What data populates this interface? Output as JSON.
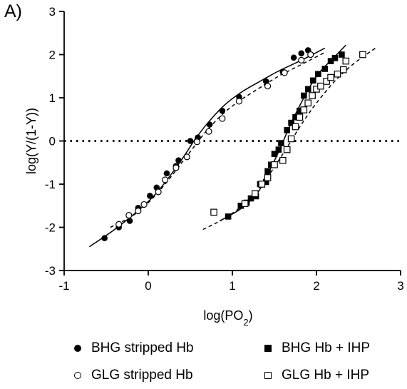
{
  "panel_label": "A)",
  "chart_data": {
    "type": "scatter",
    "xlabel": "log(PO",
    "xlabel_sub": "2",
    "xlabel_end": ")",
    "ylabel": "log(Y/(1-Y))",
    "xlim": [
      -1,
      3
    ],
    "ylim": [
      -3,
      3
    ],
    "x_ticks": [
      "-1",
      "0",
      "1",
      "2",
      "3"
    ],
    "y_ticks": [
      "-3",
      "-2",
      "-1",
      "0",
      "1",
      "2",
      "3"
    ],
    "reference_line": {
      "y": 0,
      "style": "dotted"
    },
    "series": [
      {
        "name": "BHG stripped Hb",
        "marker": "filled-circle",
        "fit_style": "solid",
        "points": [
          [
            -0.52,
            -2.25
          ],
          [
            -0.35,
            -2.0
          ],
          [
            -0.22,
            -1.85
          ],
          [
            -0.12,
            -1.55
          ],
          [
            0.02,
            -1.27
          ],
          [
            0.1,
            -1.08
          ],
          [
            0.22,
            -0.75
          ],
          [
            0.33,
            -0.58
          ],
          [
            0.36,
            -0.45
          ],
          [
            0.5,
            0.0
          ],
          [
            0.59,
            0.08
          ],
          [
            0.73,
            0.38
          ],
          [
            0.88,
            0.7
          ],
          [
            1.08,
            1.02
          ],
          [
            1.4,
            1.38
          ],
          [
            1.6,
            1.6
          ],
          [
            1.73,
            1.93
          ],
          [
            1.82,
            2.03
          ],
          [
            1.9,
            2.1
          ]
        ],
        "fit": [
          [
            -0.7,
            -2.45
          ],
          [
            -0.4,
            -2.05
          ],
          [
            -0.1,
            -1.58
          ],
          [
            0.1,
            -1.2
          ],
          [
            0.3,
            -0.7
          ],
          [
            0.45,
            -0.28
          ],
          [
            0.55,
            0.02
          ],
          [
            0.7,
            0.4
          ],
          [
            0.9,
            0.82
          ],
          [
            1.1,
            1.12
          ],
          [
            1.3,
            1.35
          ],
          [
            1.55,
            1.62
          ],
          [
            1.8,
            1.85
          ],
          [
            2.1,
            2.15
          ]
        ]
      },
      {
        "name": "GLG stripped Hb",
        "marker": "open-circle",
        "fit_style": "dashed",
        "points": [
          [
            -0.35,
            -1.93
          ],
          [
            -0.23,
            -1.72
          ],
          [
            -0.12,
            -1.62
          ],
          [
            -0.05,
            -1.47
          ],
          [
            0.12,
            -1.18
          ],
          [
            0.2,
            -0.9
          ],
          [
            0.33,
            -0.62
          ],
          [
            0.46,
            -0.37
          ],
          [
            0.58,
            -0.02
          ],
          [
            0.72,
            0.22
          ],
          [
            0.88,
            0.52
          ],
          [
            1.08,
            0.92
          ],
          [
            1.42,
            1.27
          ],
          [
            1.62,
            1.58
          ],
          [
            1.82,
            1.87
          ],
          [
            1.93,
            2.0
          ]
        ],
        "fit": [
          [
            -0.45,
            -2.0
          ],
          [
            -0.2,
            -1.75
          ],
          [
            0.0,
            -1.43
          ],
          [
            0.2,
            -1.0
          ],
          [
            0.4,
            -0.5
          ],
          [
            0.55,
            -0.12
          ],
          [
            0.7,
            0.25
          ],
          [
            0.9,
            0.65
          ],
          [
            1.1,
            0.95
          ],
          [
            1.3,
            1.2
          ],
          [
            1.55,
            1.5
          ],
          [
            1.8,
            1.75
          ],
          [
            2.1,
            2.05
          ]
        ]
      },
      {
        "name": "BHG Hb + IHP",
        "marker": "filled-square",
        "fit_style": "solid",
        "points": [
          [
            0.95,
            -1.75
          ],
          [
            1.1,
            -1.5
          ],
          [
            1.17,
            -1.43
          ],
          [
            1.22,
            -1.33
          ],
          [
            1.28,
            -1.28
          ],
          [
            1.33,
            -1.0
          ],
          [
            1.4,
            -0.95
          ],
          [
            1.42,
            -0.7
          ],
          [
            1.46,
            -0.55
          ],
          [
            1.5,
            -0.3
          ],
          [
            1.55,
            -0.2
          ],
          [
            1.58,
            -0.05
          ],
          [
            1.65,
            0.25
          ],
          [
            1.7,
            0.42
          ],
          [
            1.75,
            0.55
          ],
          [
            1.8,
            0.7
          ],
          [
            1.85,
            1.05
          ],
          [
            1.9,
            1.2
          ],
          [
            1.96,
            1.4
          ],
          [
            2.02,
            1.55
          ],
          [
            2.1,
            1.67
          ],
          [
            2.17,
            1.85
          ],
          [
            2.22,
            1.92
          ],
          [
            2.3,
            2.0
          ]
        ],
        "fit": [
          [
            0.85,
            -1.85
          ],
          [
            1.1,
            -1.57
          ],
          [
            1.3,
            -1.2
          ],
          [
            1.45,
            -0.65
          ],
          [
            1.55,
            -0.25
          ],
          [
            1.65,
            0.2
          ],
          [
            1.75,
            0.62
          ],
          [
            1.85,
            1.0
          ],
          [
            1.95,
            1.35
          ],
          [
            2.05,
            1.62
          ],
          [
            2.2,
            1.92
          ],
          [
            2.35,
            2.22
          ]
        ]
      },
      {
        "name": "GLG Hb + IHP",
        "marker": "open-square",
        "fit_style": "dashed",
        "points": [
          [
            0.78,
            -1.65
          ],
          [
            1.15,
            -1.45
          ],
          [
            1.27,
            -1.22
          ],
          [
            1.35,
            -1.0
          ],
          [
            1.42,
            -0.85
          ],
          [
            1.5,
            -0.55
          ],
          [
            1.6,
            -0.45
          ],
          [
            1.65,
            -0.2
          ],
          [
            1.7,
            0.05
          ],
          [
            1.75,
            0.33
          ],
          [
            1.8,
            0.55
          ],
          [
            1.85,
            0.72
          ],
          [
            1.9,
            0.88
          ],
          [
            1.95,
            1.05
          ],
          [
            2.0,
            1.2
          ],
          [
            2.05,
            1.27
          ],
          [
            2.12,
            1.38
          ],
          [
            2.17,
            1.47
          ],
          [
            2.25,
            1.55
          ],
          [
            2.32,
            1.65
          ],
          [
            2.35,
            1.85
          ],
          [
            2.55,
            2.0
          ]
        ],
        "fit": [
          [
            0.65,
            -2.05
          ],
          [
            0.9,
            -1.8
          ],
          [
            1.15,
            -1.45
          ],
          [
            1.35,
            -1.02
          ],
          [
            1.5,
            -0.6
          ],
          [
            1.65,
            -0.15
          ],
          [
            1.8,
            0.32
          ],
          [
            1.95,
            0.75
          ],
          [
            2.1,
            1.12
          ],
          [
            2.25,
            1.45
          ],
          [
            2.45,
            1.8
          ],
          [
            2.7,
            2.15
          ]
        ]
      }
    ]
  }
}
